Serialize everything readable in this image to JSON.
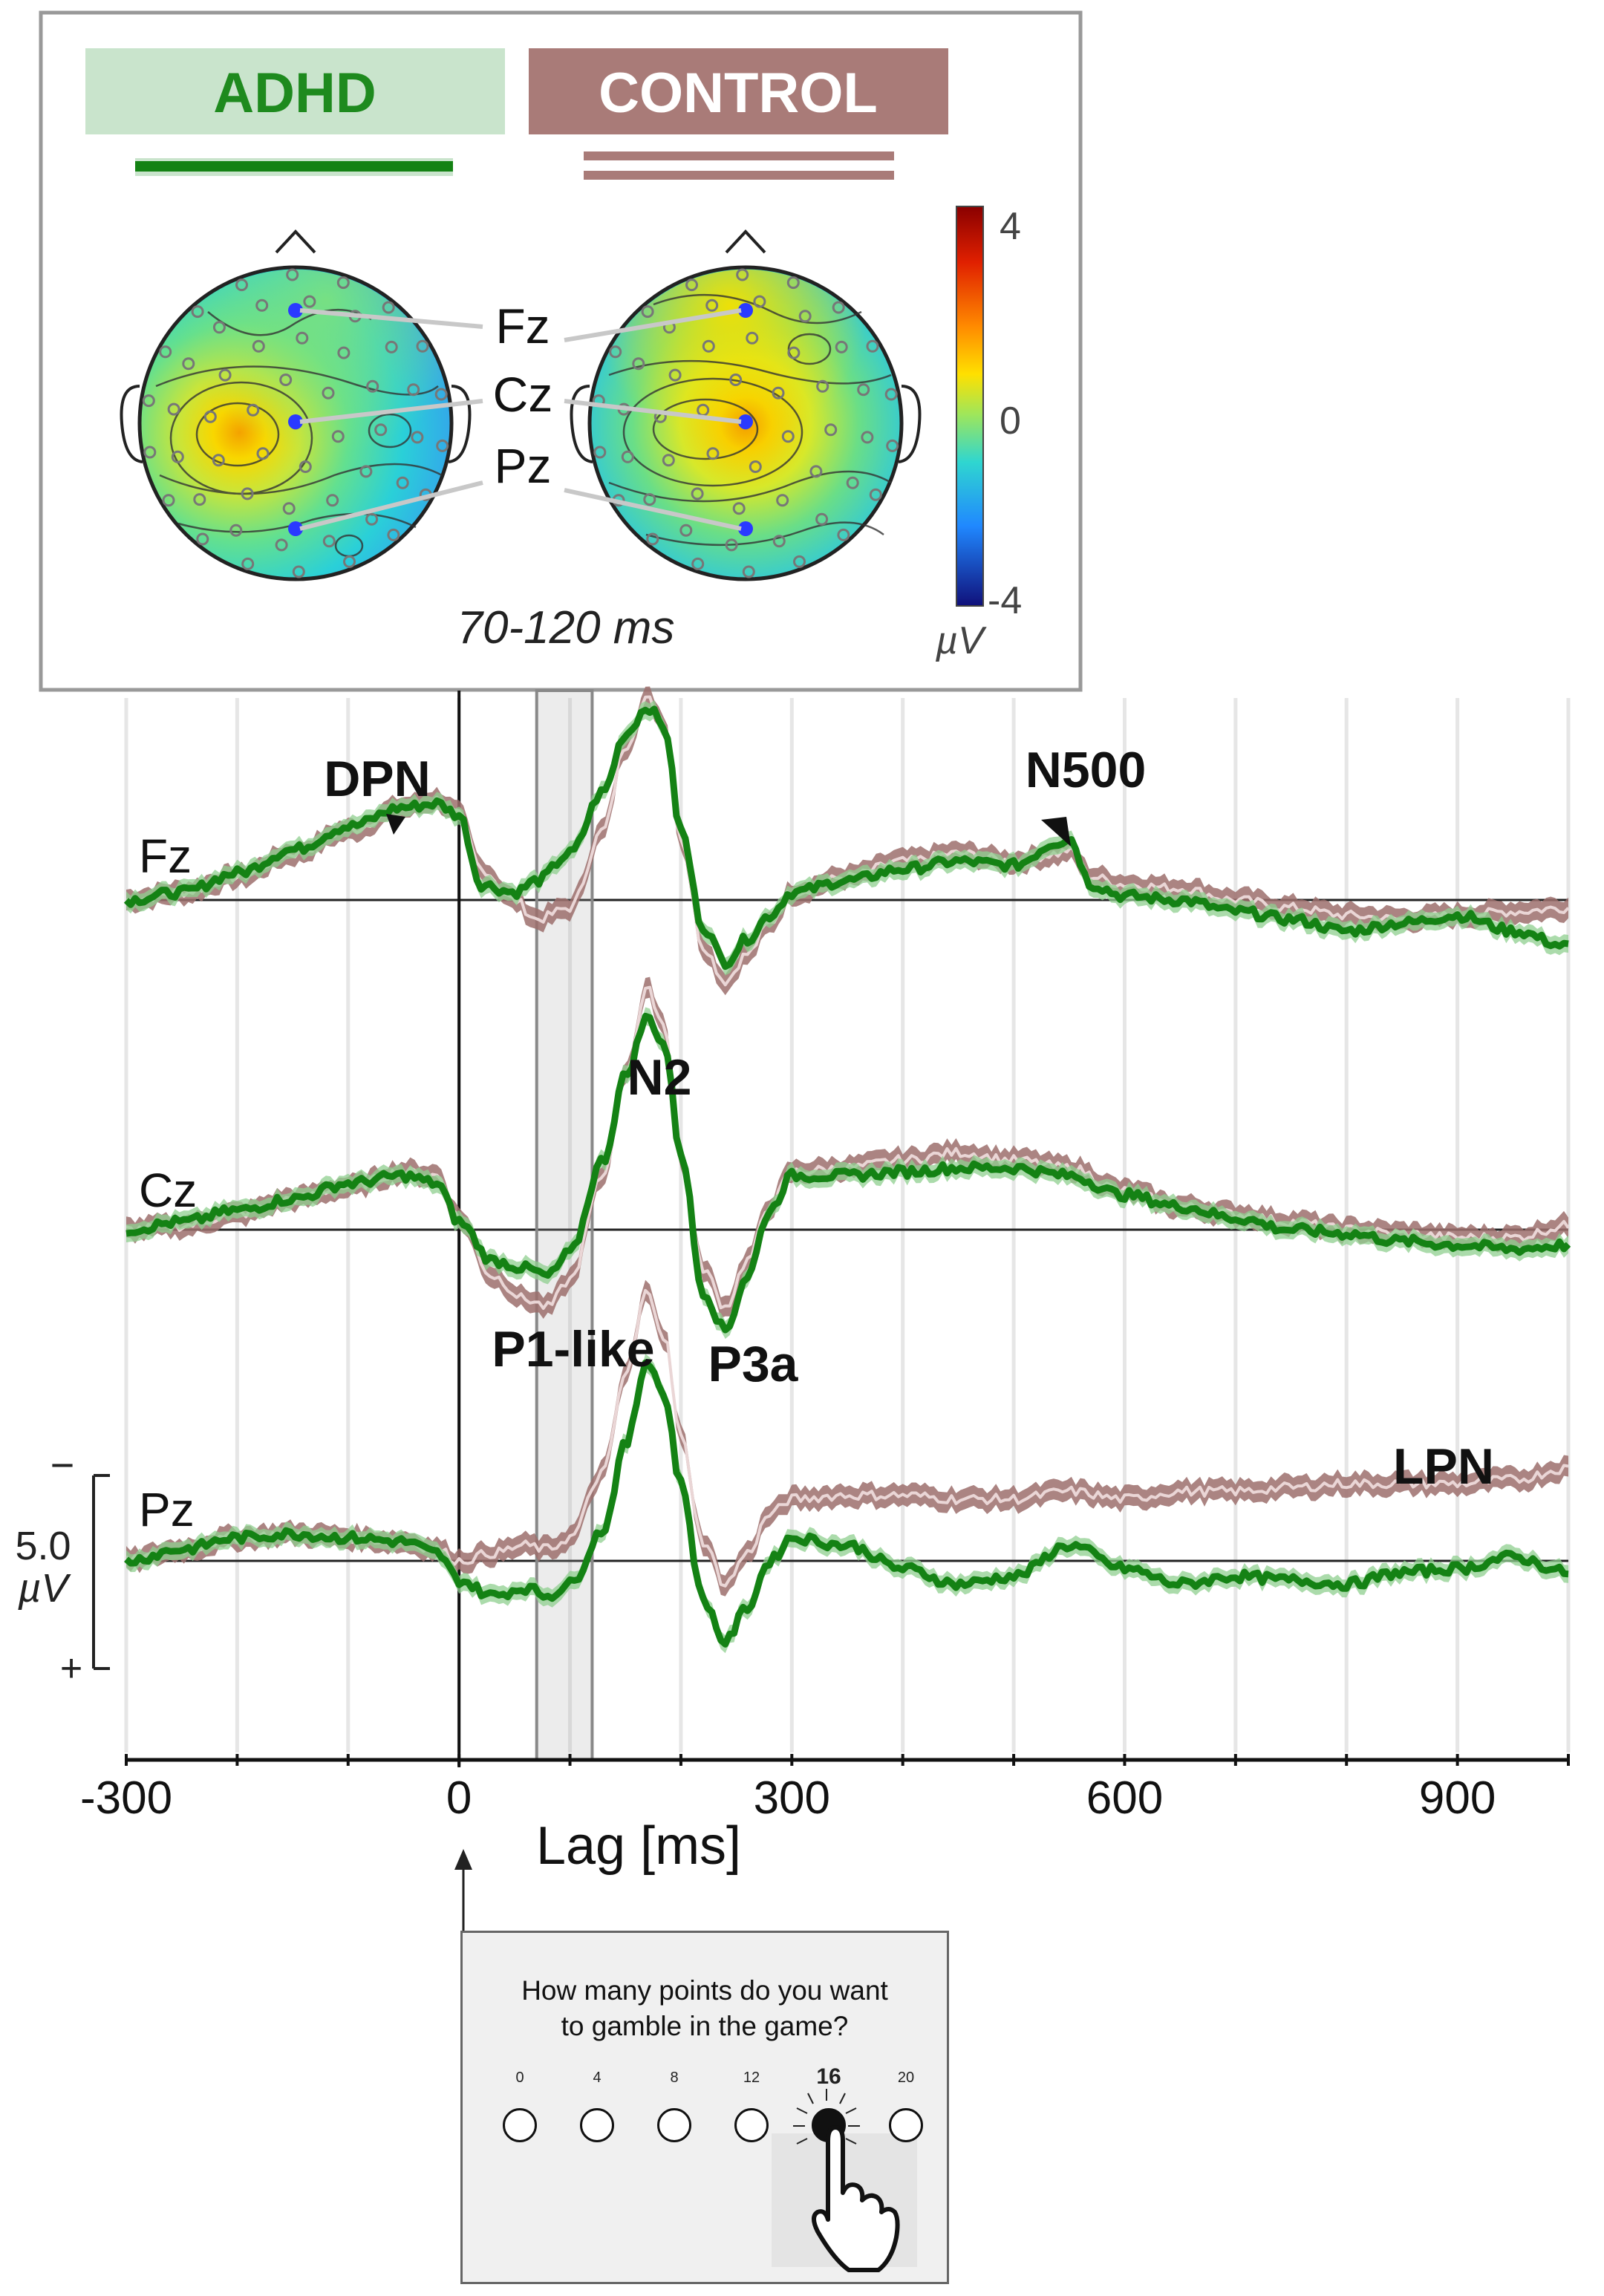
{
  "legend": {
    "group_a": {
      "label": "ADHD",
      "bg": "#c9e4cc",
      "fg": "#1e8a1e",
      "line": "#148214"
    },
    "group_b": {
      "label": "CONTROL",
      "bg": "#a97b78",
      "fg": "#ffffff",
      "line": "#a97b78"
    }
  },
  "topo": {
    "time_window": "70-120 ms",
    "colorbar": {
      "max_label": "4",
      "mid_label": "0",
      "min_label": "-4",
      "unit": "µV"
    },
    "electrode_labels": [
      "Fz",
      "Cz",
      "Pz"
    ]
  },
  "chart_data": {
    "type": "line",
    "xlabel": "Lag [ms]",
    "xlim": [
      -300,
      1000
    ],
    "xticks": [
      -300,
      0,
      300,
      600,
      900
    ],
    "highlight_window": [
      70,
      120
    ],
    "scale_bar": {
      "top": "−",
      "value": "5.0",
      "unit": "µV",
      "bottom": "+"
    },
    "polarity": "negative up",
    "channels": [
      {
        "name": "Fz",
        "series": [
          {
            "name": "ADHD",
            "x": [
              -300,
              -250,
              -200,
              -150,
              -100,
              -50,
              -20,
              0,
              20,
              50,
              70,
              100,
              130,
              150,
              170,
              185,
              200,
              220,
              240,
              260,
              280,
              300,
              350,
              400,
              450,
              500,
              540,
              550,
              570,
              600,
              650,
              700,
              750,
              800,
              850,
              900,
              950,
              1000
            ],
            "y": [
              0,
              0.2,
              0.7,
              1.3,
              1.9,
              2.4,
              2.5,
              2.2,
              0.4,
              0.2,
              0.5,
              1.2,
              2.8,
              4.3,
              5.0,
              4.5,
              1.8,
              -0.7,
              -1.6,
              -1.0,
              -0.4,
              0.2,
              0.5,
              0.8,
              1.0,
              0.9,
              1.5,
              1.6,
              0.4,
              0.1,
              0,
              -0.3,
              -0.5,
              -0.8,
              -0.6,
              -0.4,
              -0.8,
              -1.2
            ]
          },
          {
            "name": "CONTROL",
            "x": [
              -300,
              -250,
              -200,
              -150,
              -100,
              -50,
              -20,
              0,
              20,
              50,
              70,
              100,
              130,
              150,
              170,
              185,
              200,
              220,
              240,
              260,
              280,
              300,
              350,
              400,
              450,
              500,
              540,
              550,
              570,
              600,
              650,
              700,
              750,
              800,
              850,
              900,
              950,
              1000
            ],
            "y": [
              0,
              0.2,
              0.6,
              1.2,
              1.8,
              2.4,
              2.6,
              2.2,
              0.8,
              0,
              -0.5,
              -0.2,
              1.8,
              4.0,
              5.2,
              4.6,
              1.6,
              -1.2,
              -2.1,
              -1.4,
              -0.6,
              0.2,
              0.6,
              1.0,
              1.2,
              1.0,
              1.2,
              1.3,
              0.6,
              0.4,
              0.3,
              0,
              -0.2,
              -0.4,
              -0.5,
              -0.4,
              -0.3,
              -0.2
            ]
          }
        ],
        "annotations": [
          {
            "label": "DPN",
            "x": -50
          },
          {
            "label": "N500",
            "x": 545
          }
        ]
      },
      {
        "name": "Cz",
        "series": [
          {
            "name": "ADHD",
            "x": [
              -300,
              -250,
              -200,
              -150,
              -100,
              -50,
              -20,
              0,
              30,
              60,
              80,
              100,
              130,
              150,
              170,
              185,
              200,
              220,
              240,
              260,
              280,
              300,
              350,
              400,
              450,
              500,
              550,
              600,
              650,
              700,
              750,
              800,
              850,
              900,
              950,
              1000
            ],
            "y": [
              0,
              0.2,
              0.5,
              0.8,
              1.2,
              1.4,
              1.2,
              0.2,
              -0.8,
              -1.0,
              -1.2,
              -0.6,
              1.8,
              4.0,
              5.5,
              4.8,
              2.0,
              -1.6,
              -2.6,
              -1.2,
              0.5,
              1.4,
              1.4,
              1.5,
              1.6,
              1.6,
              1.4,
              0.9,
              0.6,
              0.3,
              0,
              -0.1,
              -0.3,
              -0.4,
              -0.5,
              -0.4
            ]
          },
          {
            "name": "CONTROL",
            "x": [
              -300,
              -250,
              -200,
              -150,
              -100,
              -50,
              -20,
              0,
              30,
              60,
              80,
              100,
              130,
              150,
              170,
              185,
              200,
              220,
              240,
              260,
              280,
              300,
              350,
              400,
              450,
              500,
              550,
              600,
              650,
              700,
              750,
              800,
              850,
              900,
              950,
              1000
            ],
            "y": [
              0,
              0.1,
              0.4,
              0.8,
              1.1,
              1.5,
              1.4,
              0.3,
              -1.2,
              -1.8,
              -2.0,
              -1.3,
              1.4,
              4.1,
              6.2,
              5.3,
              1.8,
              -1.0,
              -2.0,
              -0.8,
              0.6,
              1.5,
              1.6,
              1.8,
              2.0,
              1.8,
              1.6,
              1.0,
              0.6,
              0.4,
              0.2,
              0,
              -0.1,
              -0.2,
              -0.2,
              0.1
            ]
          }
        ],
        "annotations": [
          {
            "label": "N2",
            "x": 175
          },
          {
            "label": "P1-like",
            "x": 95
          },
          {
            "label": "P3a",
            "x": 250
          }
        ]
      },
      {
        "name": "Pz",
        "series": [
          {
            "name": "ADHD",
            "x": [
              -300,
              -250,
              -200,
              -150,
              -100,
              -50,
              -20,
              0,
              30,
              60,
              80,
              100,
              130,
              150,
              170,
              185,
              200,
              220,
              240,
              260,
              280,
              300,
              350,
              400,
              450,
              500,
              550,
              600,
              650,
              700,
              750,
              800,
              850,
              900,
              950,
              1000
            ],
            "y": [
              0,
              0.3,
              0.6,
              0.7,
              0.6,
              0.5,
              0.2,
              -0.5,
              -0.9,
              -0.7,
              -0.9,
              -0.6,
              0.8,
              3.0,
              5.2,
              4.3,
              2.0,
              -1.0,
              -2.1,
              -1.2,
              0,
              0.6,
              0.4,
              -0.2,
              -0.6,
              -0.4,
              0.4,
              -0.2,
              -0.6,
              -0.4,
              -0.5,
              -0.6,
              -0.3,
              -0.2,
              0.1,
              -0.3
            ]
          },
          {
            "name": "CONTROL",
            "x": [
              -300,
              -250,
              -200,
              -150,
              -100,
              -50,
              -20,
              0,
              30,
              60,
              80,
              100,
              130,
              150,
              170,
              185,
              200,
              220,
              240,
              260,
              280,
              300,
              350,
              400,
              450,
              500,
              550,
              600,
              650,
              700,
              750,
              800,
              850,
              900,
              950,
              1000
            ],
            "y": [
              0,
              0.3,
              0.6,
              0.7,
              0.6,
              0.5,
              0.3,
              0,
              0.2,
              0.4,
              0.3,
              0.6,
              2.3,
              4.8,
              7.0,
              5.8,
              3.2,
              0.5,
              -0.6,
              0.2,
              1.2,
              1.6,
              1.7,
              1.7,
              1.6,
              1.6,
              1.8,
              1.6,
              1.8,
              1.8,
              1.9,
              2.0,
              2.0,
              2.0,
              2.1,
              2.4
            ]
          }
        ],
        "annotations": [
          {
            "label": "LPN",
            "x": 870
          }
        ]
      }
    ]
  },
  "screen": {
    "question_line1": "How many points do you want",
    "question_line2": "to gamble in the game?",
    "options": [
      "0",
      "4",
      "8",
      "12",
      "16",
      "20"
    ],
    "selected": "16"
  }
}
